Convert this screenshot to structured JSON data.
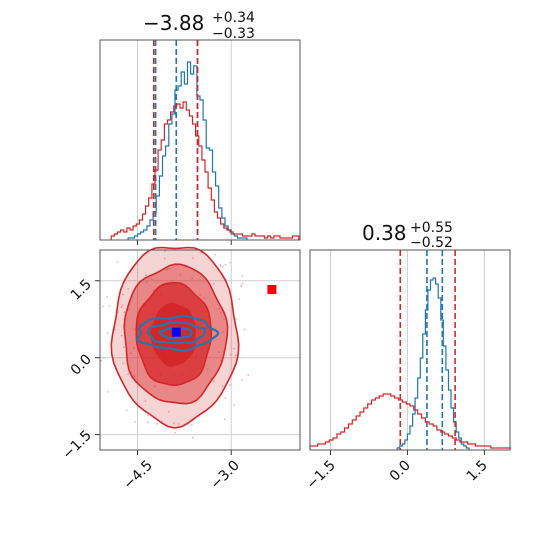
{
  "chart_data": [
    {
      "type": "histogram",
      "panel": "top-left",
      "title": {
        "value": "−3.88",
        "upper": "+0.34",
        "lower": "−0.33"
      },
      "xlim": [
        -5.1,
        -1.9
      ],
      "x_ticks": [
        -4.5,
        -3.0
      ],
      "grid": true,
      "series": [
        {
          "color": "#1f77b4",
          "bins_start": -4.65,
          "bin_width": 0.05,
          "heights": [
            0.01,
            0.01,
            0.02,
            0.03,
            0.04,
            0.05,
            0.07,
            0.1,
            0.14,
            0.22,
            0.32,
            0.42,
            0.47,
            0.58,
            0.63,
            0.75,
            0.77,
            0.84,
            0.78,
            0.89,
            0.83,
            0.87,
            0.72,
            0.7,
            0.6,
            0.46,
            0.45,
            0.34,
            0.27,
            0.16,
            0.11,
            0.07,
            0.05,
            0.03,
            0.02,
            0.01,
            0.01,
            0.01
          ],
          "quantile_lines": [
            -4.21,
            -3.88,
            -3.54
          ]
        },
        {
          "color": "#d62728",
          "bins_start": -4.92,
          "bin_width": 0.05,
          "heights": [
            0.02,
            0.03,
            0.04,
            0.05,
            0.04,
            0.06,
            0.05,
            0.07,
            0.08,
            0.1,
            0.13,
            0.17,
            0.21,
            0.28,
            0.35,
            0.45,
            0.5,
            0.58,
            0.6,
            0.64,
            0.67,
            0.68,
            0.66,
            0.69,
            0.65,
            0.62,
            0.58,
            0.52,
            0.47,
            0.4,
            0.34,
            0.26,
            0.2,
            0.14,
            0.11,
            0.08,
            0.06,
            0.05,
            0.04,
            0.03,
            0.03,
            0.03,
            0.02,
            0.02,
            0.02,
            0.03,
            0.02,
            0.02,
            0.02,
            0.01,
            0.02,
            0.01,
            0.02,
            0.02,
            0.01,
            0.01,
            0.01,
            0.01,
            0.02,
            0.02
          ],
          "quantile_lines": [
            -4.24,
            -3.54
          ]
        }
      ]
    },
    {
      "type": "contour",
      "panel": "bottom-left",
      "xlim": [
        -5.1,
        -1.9
      ],
      "ylim": [
        -1.8,
        2.1
      ],
      "x_ticks": [
        -4.5,
        -3.0
      ],
      "x_tick_labels": [
        "−4.5",
        "−3.0"
      ],
      "y_ticks": [
        1.5,
        0.0,
        -1.5
      ],
      "y_tick_labels": [
        "1.5",
        "0.0",
        "−1.5"
      ],
      "grid": true,
      "series": [
        {
          "color": "#d62728",
          "fill": true,
          "contours": [
            {
              "cx": -3.9,
              "cy": 0.45,
              "rx": 1.0,
              "ry": 1.75,
              "opacity": 0.2
            },
            {
              "cx": -3.9,
              "cy": 0.45,
              "rx": 0.82,
              "ry": 1.35,
              "opacity": 0.45
            },
            {
              "cx": -3.92,
              "cy": 0.45,
              "rx": 0.6,
              "ry": 1.0,
              "opacity": 0.75
            },
            {
              "cx": -3.92,
              "cy": 0.45,
              "rx": 0.35,
              "ry": 0.6,
              "opacity": 1.0
            }
          ]
        },
        {
          "color": "#1f77b4",
          "fill": false,
          "contours": [
            {
              "cx": -3.88,
              "cy": 0.48,
              "rx": 0.62,
              "ry": 0.32
            },
            {
              "cx": -3.88,
              "cy": 0.48,
              "rx": 0.45,
              "ry": 0.2
            },
            {
              "cx": -3.88,
              "cy": 0.48,
              "rx": 0.25,
              "ry": 0.1
            }
          ]
        }
      ],
      "markers": [
        {
          "x": -3.88,
          "y": 0.5,
          "color": "#0000ff",
          "shape": "square"
        },
        {
          "x": -2.35,
          "y": 1.33,
          "color": "#ff0000",
          "shape": "square"
        }
      ]
    },
    {
      "type": "histogram",
      "panel": "bottom-right",
      "title": {
        "value": "0.38",
        "upper": "+0.55",
        "lower": "−0.52"
      },
      "xlim": [
        -1.9,
        2.0
      ],
      "x_ticks": [
        -1.5,
        0.0,
        1.5
      ],
      "x_tick_labels": [
        "−1.5",
        "0.0",
        "1.5"
      ],
      "grid": true,
      "series": [
        {
          "color": "#1f77b4",
          "bins_start": -0.2,
          "bin_width": 0.05,
          "heights": [
            0.01,
            0.02,
            0.03,
            0.05,
            0.08,
            0.12,
            0.18,
            0.26,
            0.36,
            0.46,
            0.58,
            0.7,
            0.8,
            0.85,
            0.86,
            0.83,
            0.76,
            0.65,
            0.52,
            0.4,
            0.3,
            0.21,
            0.14,
            0.09,
            0.06,
            0.03,
            0.02,
            0.01
          ],
          "quantile_lines": [
            0.38,
            0.68
          ]
        },
        {
          "color": "#d62728",
          "bins_start": -1.9,
          "bin_width": 0.075,
          "heights": [
            0.02,
            0.02,
            0.03,
            0.03,
            0.04,
            0.05,
            0.06,
            0.08,
            0.09,
            0.11,
            0.13,
            0.15,
            0.17,
            0.19,
            0.21,
            0.23,
            0.25,
            0.26,
            0.27,
            0.28,
            0.28,
            0.27,
            0.26,
            0.25,
            0.24,
            0.23,
            0.22,
            0.2,
            0.18,
            0.16,
            0.14,
            0.13,
            0.12,
            0.1,
            0.09,
            0.08,
            0.07,
            0.06,
            0.05,
            0.04,
            0.04,
            0.03,
            0.03,
            0.02,
            0.02,
            0.02,
            0.02,
            0.01,
            0.01,
            0.01,
            0.01,
            0.01
          ],
          "quantile_lines": [
            -0.14,
            0.93
          ]
        }
      ]
    }
  ]
}
